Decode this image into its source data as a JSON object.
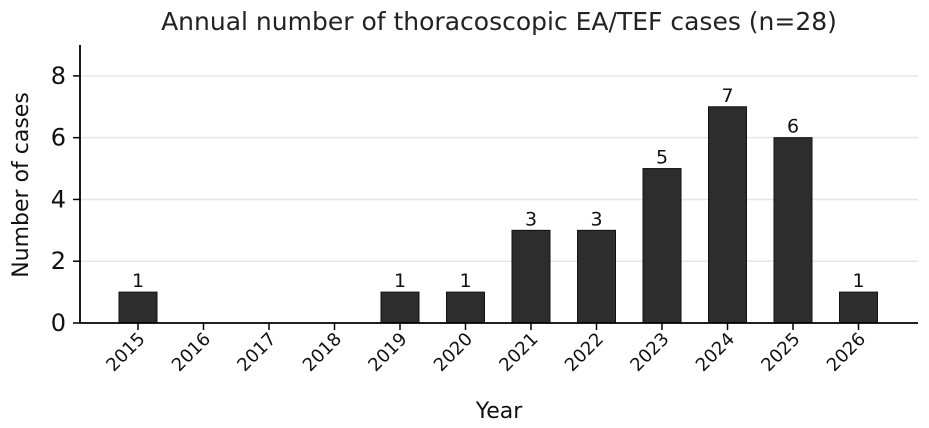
{
  "chart_data": {
    "type": "bar",
    "title": "Annual number of thoracoscopic EA/TEF cases (n=28)",
    "xlabel": "Year",
    "ylabel": "Number of cases",
    "categories": [
      "2015",
      "2016",
      "2017",
      "2018",
      "2019",
      "2020",
      "2021",
      "2022",
      "2023",
      "2024",
      "2025",
      "2026"
    ],
    "values": [
      1,
      0,
      0,
      0,
      1,
      1,
      3,
      3,
      5,
      7,
      6,
      1
    ],
    "data_labels": [
      "1",
      "",
      "",
      "",
      "1",
      "1",
      "3",
      "3",
      "5",
      "7",
      "6",
      "1"
    ],
    "ylim": [
      0,
      9
    ],
    "yticks": [
      0,
      2,
      4,
      6,
      8
    ],
    "ytick_labels": [
      "0",
      "2",
      "4",
      "6",
      "8"
    ],
    "grid": "horizontal",
    "bar_color": "#2d2d2d",
    "edge_color": "#111111",
    "grid_color": "#e6e6e6"
  }
}
